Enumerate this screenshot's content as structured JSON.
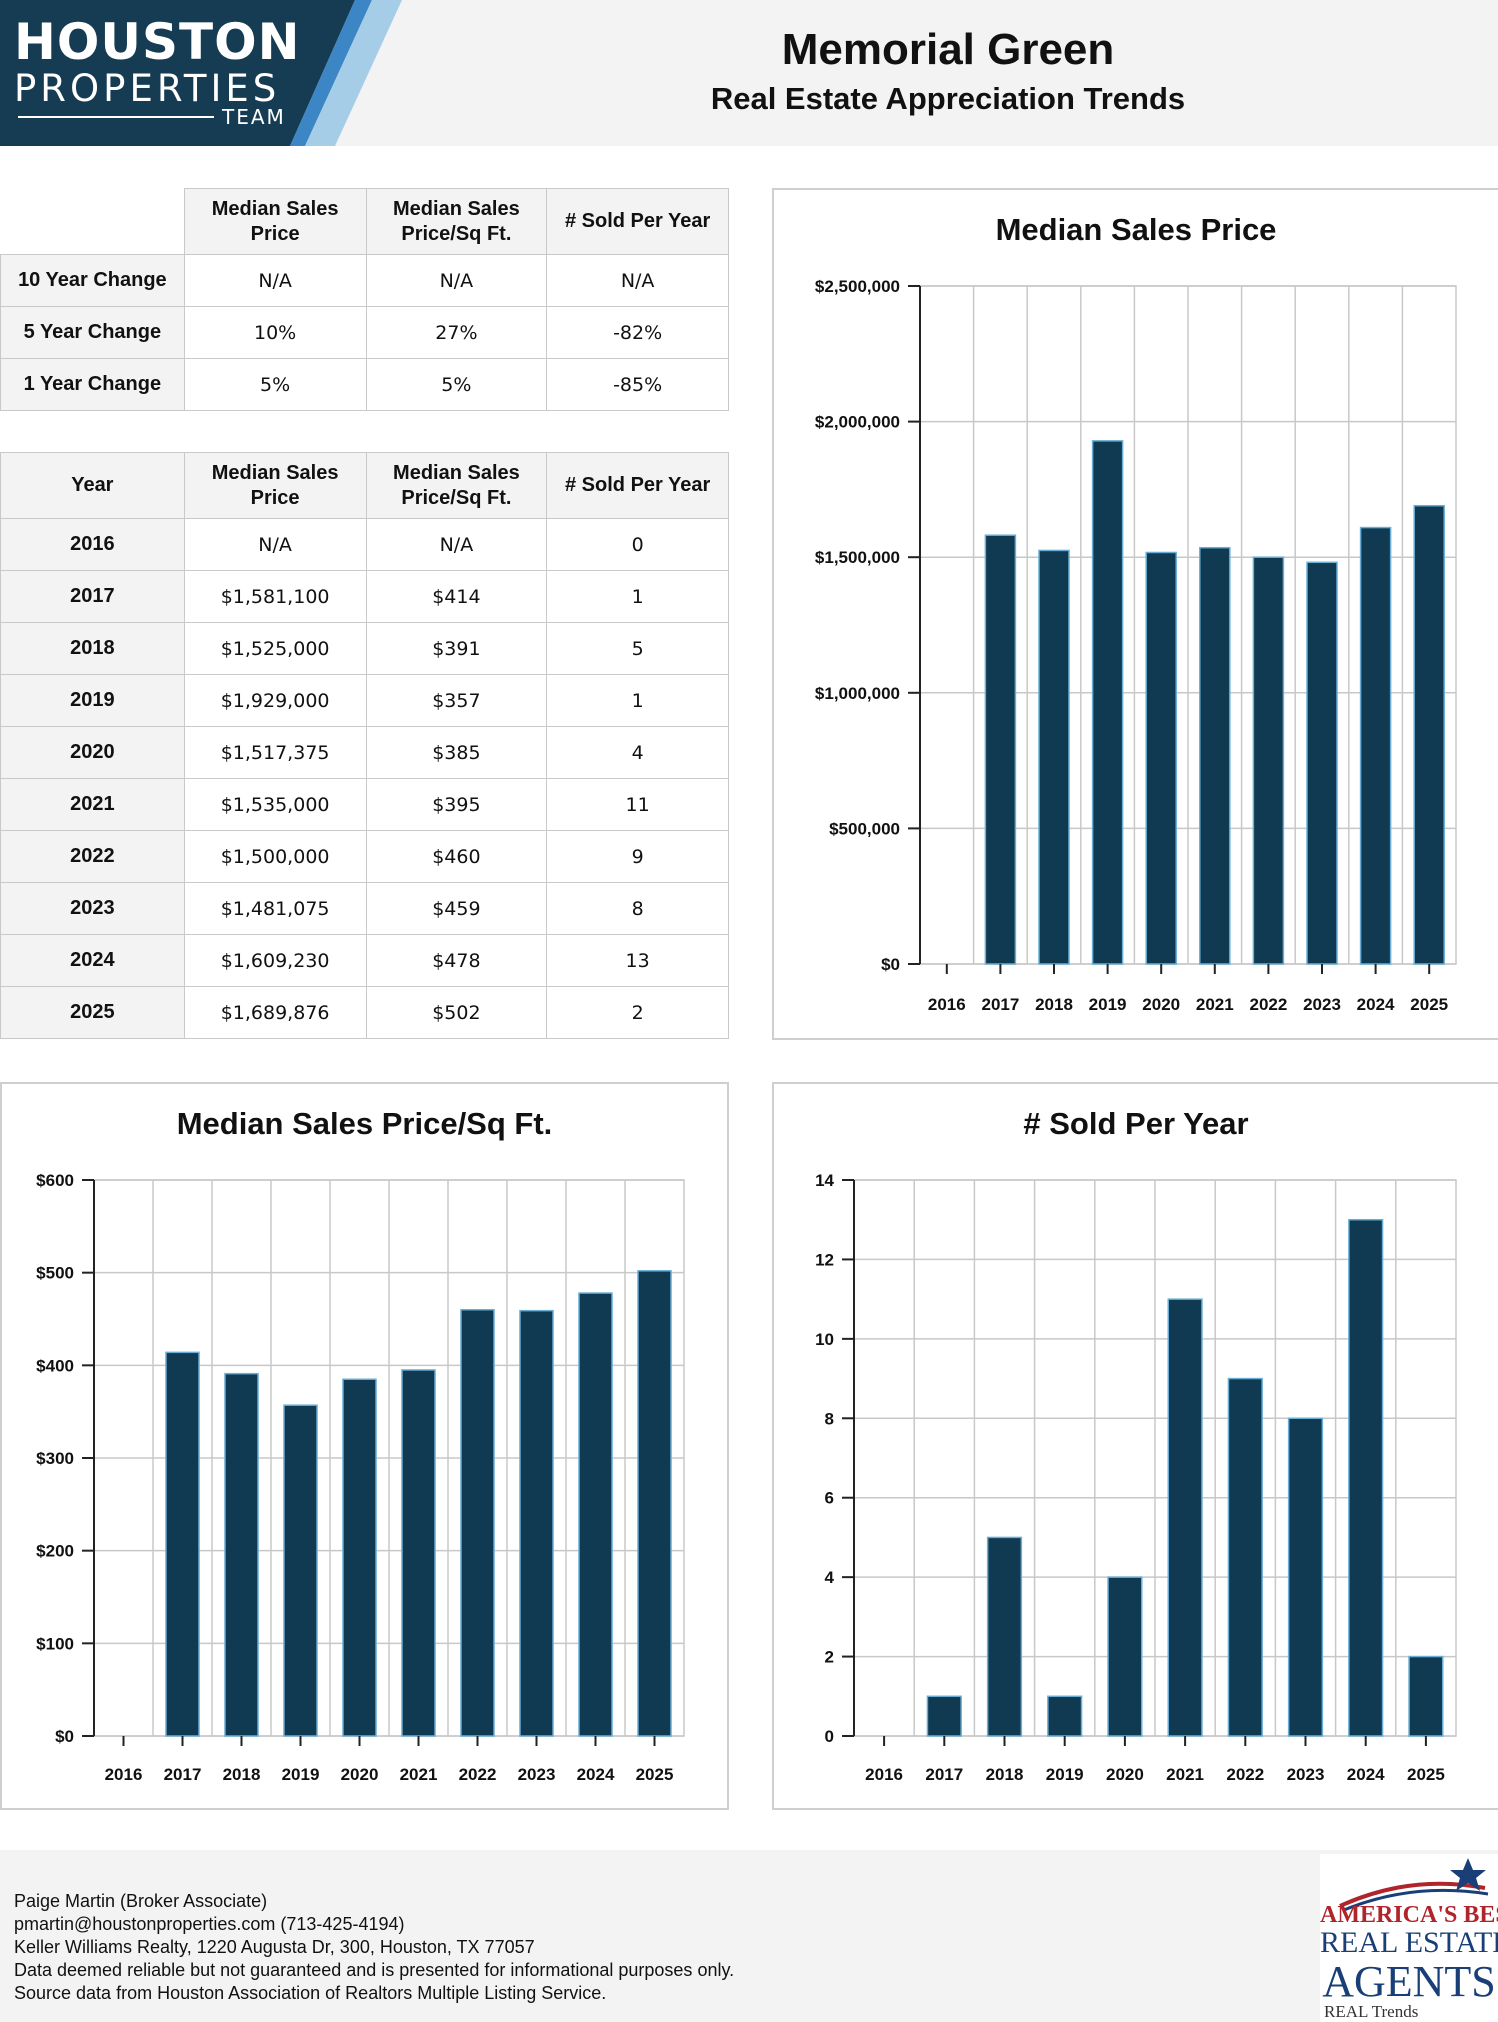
{
  "logo": {
    "line1": "HOUSTON",
    "line2": "PROPERTIES",
    "line3": "TEAM"
  },
  "header": {
    "title": "Memorial Green",
    "subtitle": "Real Estate Appreciation Trends"
  },
  "changes_table": {
    "columns": [
      "Median Sales Price",
      "Median Sales Price/Sq Ft.",
      "# Sold Per Year"
    ],
    "rows": [
      {
        "label": "10 Year Change",
        "values": [
          "N/A",
          "N/A",
          "N/A"
        ]
      },
      {
        "label": "5 Year Change",
        "values": [
          "10%",
          "27%",
          "-82%"
        ]
      },
      {
        "label": "1 Year Change",
        "values": [
          "5%",
          "5%",
          "-85%"
        ]
      }
    ]
  },
  "years_table": {
    "columns": [
      "Year",
      "Median Sales Price",
      "Median Sales Price/Sq Ft.",
      "# Sold Per Year"
    ],
    "rows": [
      {
        "year": "2016",
        "price": "N/A",
        "sqft": "N/A",
        "sold": "0"
      },
      {
        "year": "2017",
        "price": "$1,581,100",
        "sqft": "$414",
        "sold": "1"
      },
      {
        "year": "2018",
        "price": "$1,525,000",
        "sqft": "$391",
        "sold": "5"
      },
      {
        "year": "2019",
        "price": "$1,929,000",
        "sqft": "$357",
        "sold": "1"
      },
      {
        "year": "2020",
        "price": "$1,517,375",
        "sqft": "$385",
        "sold": "4"
      },
      {
        "year": "2021",
        "price": "$1,535,000",
        "sqft": "$395",
        "sold": "11"
      },
      {
        "year": "2022",
        "price": "$1,500,000",
        "sqft": "$460",
        "sold": "9"
      },
      {
        "year": "2023",
        "price": "$1,481,075",
        "sqft": "$459",
        "sold": "8"
      },
      {
        "year": "2024",
        "price": "$1,609,230",
        "sqft": "$478",
        "sold": "13"
      },
      {
        "year": "2025",
        "price": "$1,689,876",
        "sqft": "$502",
        "sold": "2"
      }
    ]
  },
  "chart_data": [
    {
      "id": "price",
      "type": "bar",
      "title": "Median Sales Price",
      "categories": [
        "2016",
        "2017",
        "2018",
        "2019",
        "2020",
        "2021",
        "2022",
        "2023",
        "2024",
        "2025"
      ],
      "values": [
        0,
        1581100,
        1525000,
        1929000,
        1517375,
        1535000,
        1500000,
        1481075,
        1609230,
        1689876
      ],
      "ylim": [
        0,
        2500000
      ],
      "yticks": [
        0,
        500000,
        1000000,
        1500000,
        2000000,
        2500000
      ],
      "ytick_labels": [
        "$0",
        "$500,000",
        "$1,000,000",
        "$1,500,000",
        "$2,000,000",
        "$2,500,000"
      ],
      "grid": true,
      "bar_color": "#0f3a52",
      "bar_edge_color": "#6aaed6"
    },
    {
      "id": "sqft",
      "type": "bar",
      "title": "Median Sales Price/Sq Ft.",
      "categories": [
        "2016",
        "2017",
        "2018",
        "2019",
        "2020",
        "2021",
        "2022",
        "2023",
        "2024",
        "2025"
      ],
      "values": [
        0,
        414,
        391,
        357,
        385,
        395,
        460,
        459,
        478,
        502
      ],
      "ylim": [
        0,
        600
      ],
      "yticks": [
        0,
        100,
        200,
        300,
        400,
        500,
        600
      ],
      "ytick_labels": [
        "$0",
        "$100",
        "$200",
        "$300",
        "$400",
        "$500",
        "$600"
      ],
      "grid": true,
      "bar_color": "#0f3a52",
      "bar_edge_color": "#6aaed6"
    },
    {
      "id": "sold",
      "type": "bar",
      "title": "# Sold Per Year",
      "categories": [
        "2016",
        "2017",
        "2018",
        "2019",
        "2020",
        "2021",
        "2022",
        "2023",
        "2024",
        "2025"
      ],
      "values": [
        0,
        1,
        5,
        1,
        4,
        11,
        9,
        8,
        13,
        2
      ],
      "ylim": [
        0,
        14
      ],
      "yticks": [
        0,
        2,
        4,
        6,
        8,
        10,
        12,
        14
      ],
      "ytick_labels": [
        "0",
        "2",
        "4",
        "6",
        "8",
        "10",
        "12",
        "14"
      ],
      "grid": true,
      "bar_color": "#0f3a52",
      "bar_edge_color": "#6aaed6"
    }
  ],
  "footer": {
    "lines": [
      "Paige Martin (Broker Associate)",
      "pmartin@houstonproperties.com (713-425-4194)",
      "Keller Williams Realty, 1220 Augusta Dr, 300, Houston, TX 77057",
      "Data deemed reliable but not guaranteed and is presented for informational purposes only.",
      "Source data from Houston Association of Realtors Multiple Listing Service."
    ],
    "badge": {
      "line1": "AMERICA'S BEST",
      "line2": "REAL ESTATE",
      "line3": "AGENTS",
      "line4": "REAL Trends"
    }
  },
  "colors": {
    "logo_navy": "#163c54",
    "logo_blue": "#3c86c6",
    "logo_light_blue": "#a6cde8",
    "header_bg": "#f3f3f3"
  }
}
